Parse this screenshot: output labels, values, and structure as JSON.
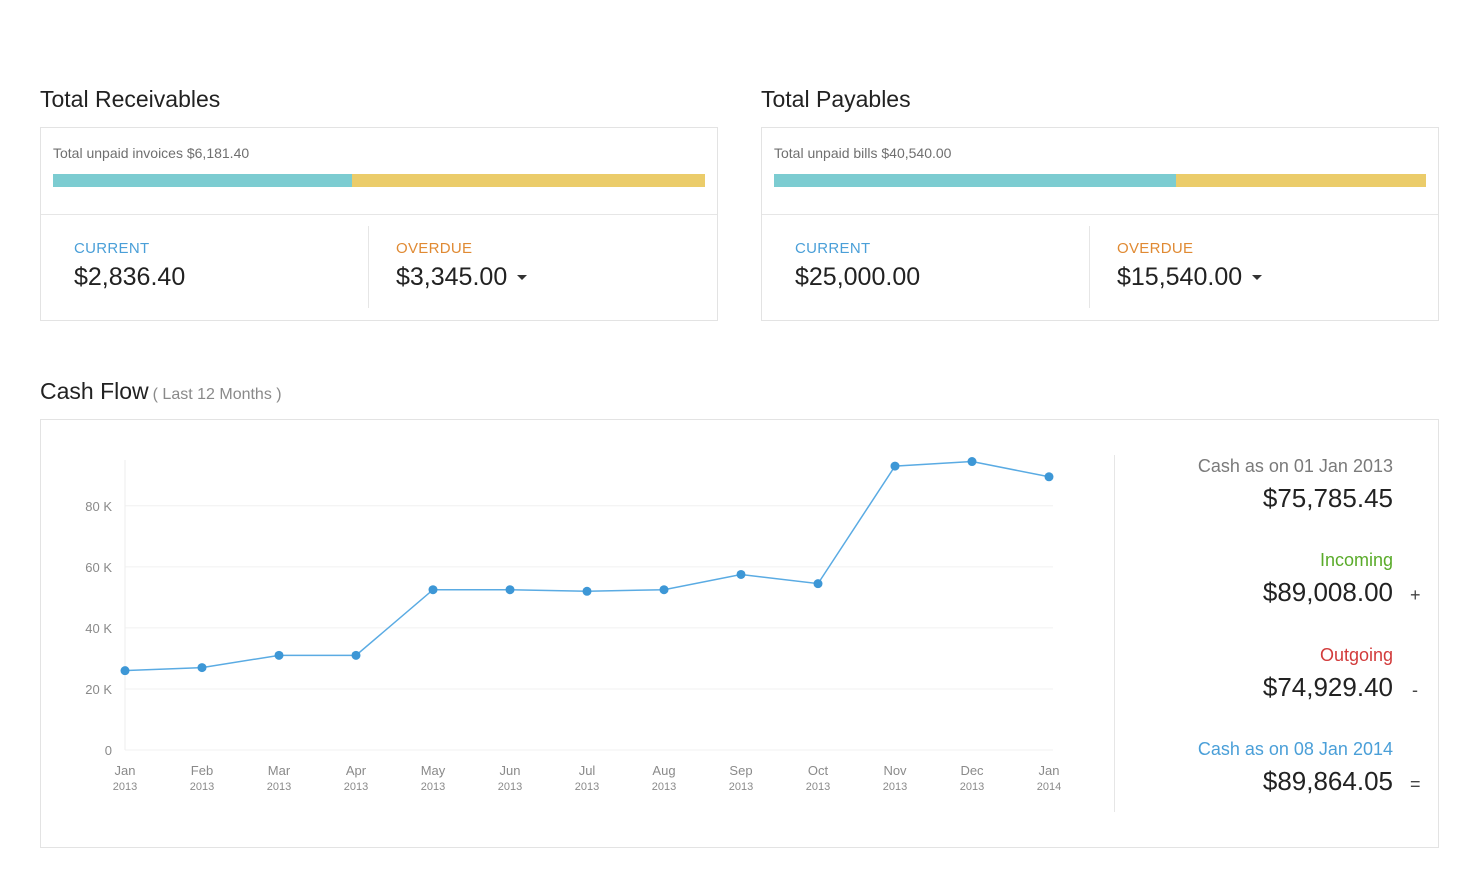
{
  "receivables": {
    "title": "Total Receivables",
    "unpaid_label": "Total unpaid invoices $6,181.40",
    "current_fraction": 0.459,
    "current_label": "CURRENT",
    "current_value": "$2,836.40",
    "overdue_label": "OVERDUE",
    "overdue_value": "$3,345.00"
  },
  "payables": {
    "title": "Total Payables",
    "unpaid_label": "Total unpaid bills $40,540.00",
    "current_fraction": 0.617,
    "current_label": "CURRENT",
    "current_value": "$25,000.00",
    "overdue_label": "OVERDUE",
    "overdue_value": "$15,540.00"
  },
  "cashflow": {
    "title": "Cash Flow",
    "subtitle": "( Last 12 Months )",
    "summary": {
      "start_label": "Cash as on 01 Jan 2013",
      "start_value": "$75,785.45",
      "incoming_label": "Incoming",
      "incoming_value": "$89,008.00",
      "incoming_sign": "+",
      "outgoing_label": "Outgoing",
      "outgoing_value": "$74,929.40",
      "outgoing_sign": "-",
      "end_label": "Cash as on 08 Jan 2014",
      "end_value": "$89,864.05",
      "end_sign": "="
    }
  },
  "colors": {
    "current": "#4a9fd8",
    "overdue": "#e08a33",
    "bar_current": "#7cccd1",
    "bar_overdue": "#ebcc6a",
    "incoming": "#5aab2a",
    "outgoing": "#d23b3b",
    "end_label": "#4a9fd8",
    "line": "#5aabe3"
  },
  "chart_data": {
    "type": "line",
    "x_month": [
      "Jan",
      "Feb",
      "Mar",
      "Apr",
      "May",
      "Jun",
      "Jul",
      "Aug",
      "Sep",
      "Oct",
      "Nov",
      "Dec",
      "Jan"
    ],
    "x_year": [
      "2013",
      "2013",
      "2013",
      "2013",
      "2013",
      "2013",
      "2013",
      "2013",
      "2013",
      "2013",
      "2013",
      "2013",
      "2014"
    ],
    "values": [
      26000,
      27000,
      31000,
      31000,
      52500,
      52500,
      52000,
      52500,
      57500,
      54500,
      93000,
      94500,
      89500
    ],
    "y_ticks": [
      0,
      20000,
      40000,
      60000,
      80000
    ],
    "y_tick_labels": [
      "0",
      "20 K",
      "40 K",
      "60 K",
      "80 K"
    ],
    "ylim": [
      0,
      95000
    ],
    "grid": true
  }
}
